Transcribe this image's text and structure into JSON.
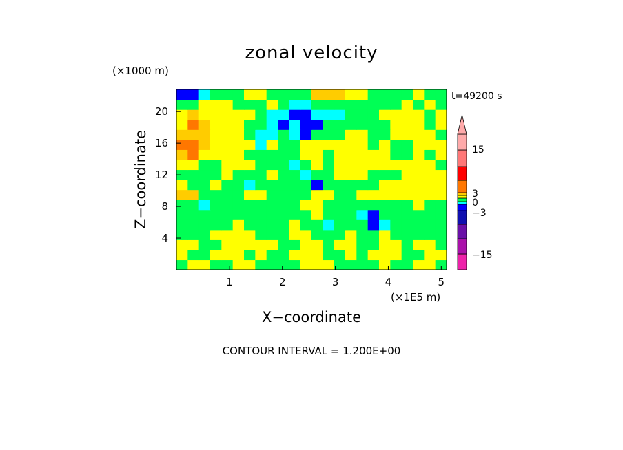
{
  "chart_data": {
    "type": "heatmap",
    "title": "zonal velocity",
    "xlabel": "X−coordinate",
    "ylabel": "Z−coordinate",
    "x_unit": "(×1E5 m)",
    "y_unit": "(×1000 m)",
    "time_label": "t=49200 s",
    "footer": "CONTOUR INTERVAL = 1.200E+00",
    "xlim": [
      0,
      5.1
    ],
    "ylim": [
      0,
      22.8
    ],
    "x_ticks": [
      1,
      2,
      3,
      4,
      5
    ],
    "y_ticks": [
      4,
      8,
      12,
      16,
      20
    ],
    "colorbar": {
      "tick_labels": [
        "15",
        "3",
        "0",
        "−3",
        "−15"
      ],
      "colors": [
        "#ee22aa",
        "#aa11aa",
        "#6a10a8",
        "#1010b0",
        "#0000ff",
        "#00ffff",
        "#00ff55",
        "#ffff00",
        "#ffcc00",
        "#ff7700",
        "#ff0000",
        "#ff7777",
        "#ffaaaa"
      ],
      "extend": "max"
    },
    "values_grid_rows_bottom_to_top": [
      [
        6,
        7,
        7,
        6,
        6,
        7,
        7,
        6,
        6,
        6,
        6,
        7,
        7,
        7,
        6,
        6,
        6,
        6,
        7,
        6,
        6,
        7,
        7,
        6
      ],
      [
        7,
        6,
        6,
        7,
        7,
        7,
        6,
        7,
        6,
        6,
        7,
        7,
        7,
        6,
        6,
        7,
        6,
        7,
        7,
        7,
        6,
        6,
        7,
        7
      ],
      [
        7,
        7,
        6,
        6,
        7,
        7,
        7,
        7,
        7,
        6,
        6,
        7,
        7,
        6,
        7,
        7,
        6,
        6,
        7,
        7,
        6,
        7,
        7,
        6
      ],
      [
        6,
        6,
        6,
        7,
        7,
        7,
        7,
        6,
        6,
        6,
        7,
        7,
        6,
        6,
        6,
        7,
        6,
        6,
        7,
        6,
        6,
        6,
        6,
        6
      ],
      [
        6,
        6,
        6,
        6,
        6,
        7,
        6,
        6,
        6,
        6,
        7,
        6,
        6,
        5,
        6,
        6,
        6,
        4,
        5,
        6,
        6,
        6,
        6,
        6
      ],
      [
        6,
        6,
        6,
        6,
        6,
        6,
        6,
        6,
        6,
        6,
        6,
        6,
        7,
        6,
        6,
        6,
        5,
        4,
        6,
        6,
        6,
        6,
        6,
        6
      ],
      [
        6,
        6,
        5,
        6,
        6,
        6,
        6,
        6,
        6,
        6,
        6,
        7,
        7,
        6,
        6,
        6,
        6,
        6,
        6,
        6,
        6,
        7,
        6,
        6
      ],
      [
        8,
        8,
        6,
        6,
        6,
        6,
        7,
        7,
        6,
        6,
        6,
        6,
        7,
        7,
        6,
        6,
        7,
        7,
        7,
        7,
        7,
        7,
        7,
        7
      ],
      [
        7,
        6,
        6,
        7,
        6,
        6,
        5,
        6,
        6,
        6,
        6,
        6,
        4,
        6,
        6,
        6,
        6,
        6,
        7,
        7,
        7,
        7,
        7,
        7
      ],
      [
        6,
        6,
        6,
        6,
        7,
        6,
        6,
        6,
        7,
        6,
        6,
        5,
        6,
        6,
        7,
        7,
        7,
        6,
        6,
        6,
        7,
        7,
        7,
        7
      ],
      [
        7,
        7,
        6,
        6,
        7,
        7,
        7,
        6,
        6,
        6,
        5,
        6,
        7,
        6,
        7,
        7,
        7,
        7,
        7,
        7,
        7,
        7,
        7,
        6
      ],
      [
        8,
        9,
        7,
        7,
        7,
        7,
        6,
        6,
        6,
        6,
        6,
        7,
        7,
        6,
        7,
        7,
        7,
        7,
        7,
        6,
        6,
        7,
        6,
        7
      ],
      [
        9,
        9,
        8,
        7,
        7,
        7,
        7,
        5,
        7,
        6,
        6,
        7,
        7,
        7,
        7,
        7,
        7,
        6,
        7,
        6,
        6,
        7,
        7,
        7
      ],
      [
        8,
        8,
        8,
        7,
        7,
        7,
        6,
        5,
        5,
        6,
        5,
        4,
        6,
        6,
        6,
        7,
        7,
        6,
        6,
        7,
        7,
        7,
        7,
        6
      ],
      [
        7,
        9,
        8,
        7,
        7,
        7,
        6,
        6,
        5,
        4,
        5,
        4,
        4,
        6,
        6,
        6,
        6,
        6,
        6,
        7,
        7,
        7,
        6,
        7
      ],
      [
        7,
        8,
        7,
        7,
        7,
        7,
        7,
        6,
        5,
        5,
        4,
        4,
        5,
        5,
        5,
        6,
        6,
        6,
        7,
        7,
        7,
        7,
        6,
        7
      ],
      [
        6,
        6,
        7,
        7,
        7,
        6,
        6,
        6,
        7,
        6,
        5,
        5,
        6,
        6,
        6,
        6,
        6,
        6,
        6,
        6,
        7,
        6,
        7,
        6
      ],
      [
        4,
        4,
        5,
        6,
        6,
        6,
        7,
        7,
        6,
        6,
        6,
        6,
        8,
        8,
        8,
        7,
        7,
        6,
        6,
        6,
        6,
        7,
        6,
        6
      ]
    ]
  }
}
